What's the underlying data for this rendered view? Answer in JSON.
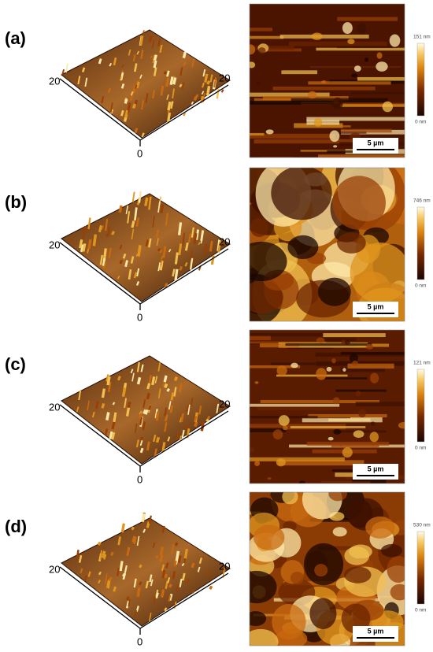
{
  "panels": [
    {
      "label": "(a)",
      "axis_left": "20",
      "axis_right": "20",
      "axis_origin": "0",
      "scale_max": "151 nm",
      "scale_min": "0 nm",
      "scale_bar": "5 µm"
    },
    {
      "label": "(b)",
      "axis_left": "20",
      "axis_right": "20",
      "axis_origin": "0",
      "scale_max": "746 nm",
      "scale_min": "0 nm",
      "scale_bar": "5 µm"
    },
    {
      "label": "(c)",
      "axis_left": "20",
      "axis_right": "20",
      "axis_origin": "0",
      "scale_max": "121 nm",
      "scale_min": "0 nm",
      "scale_bar": "5 µm"
    },
    {
      "label": "(d)",
      "axis_left": "20",
      "axis_right": "20",
      "axis_origin": "0",
      "scale_max": "530 nm",
      "scale_min": "0 nm",
      "scale_bar": "5 µm"
    }
  ]
}
